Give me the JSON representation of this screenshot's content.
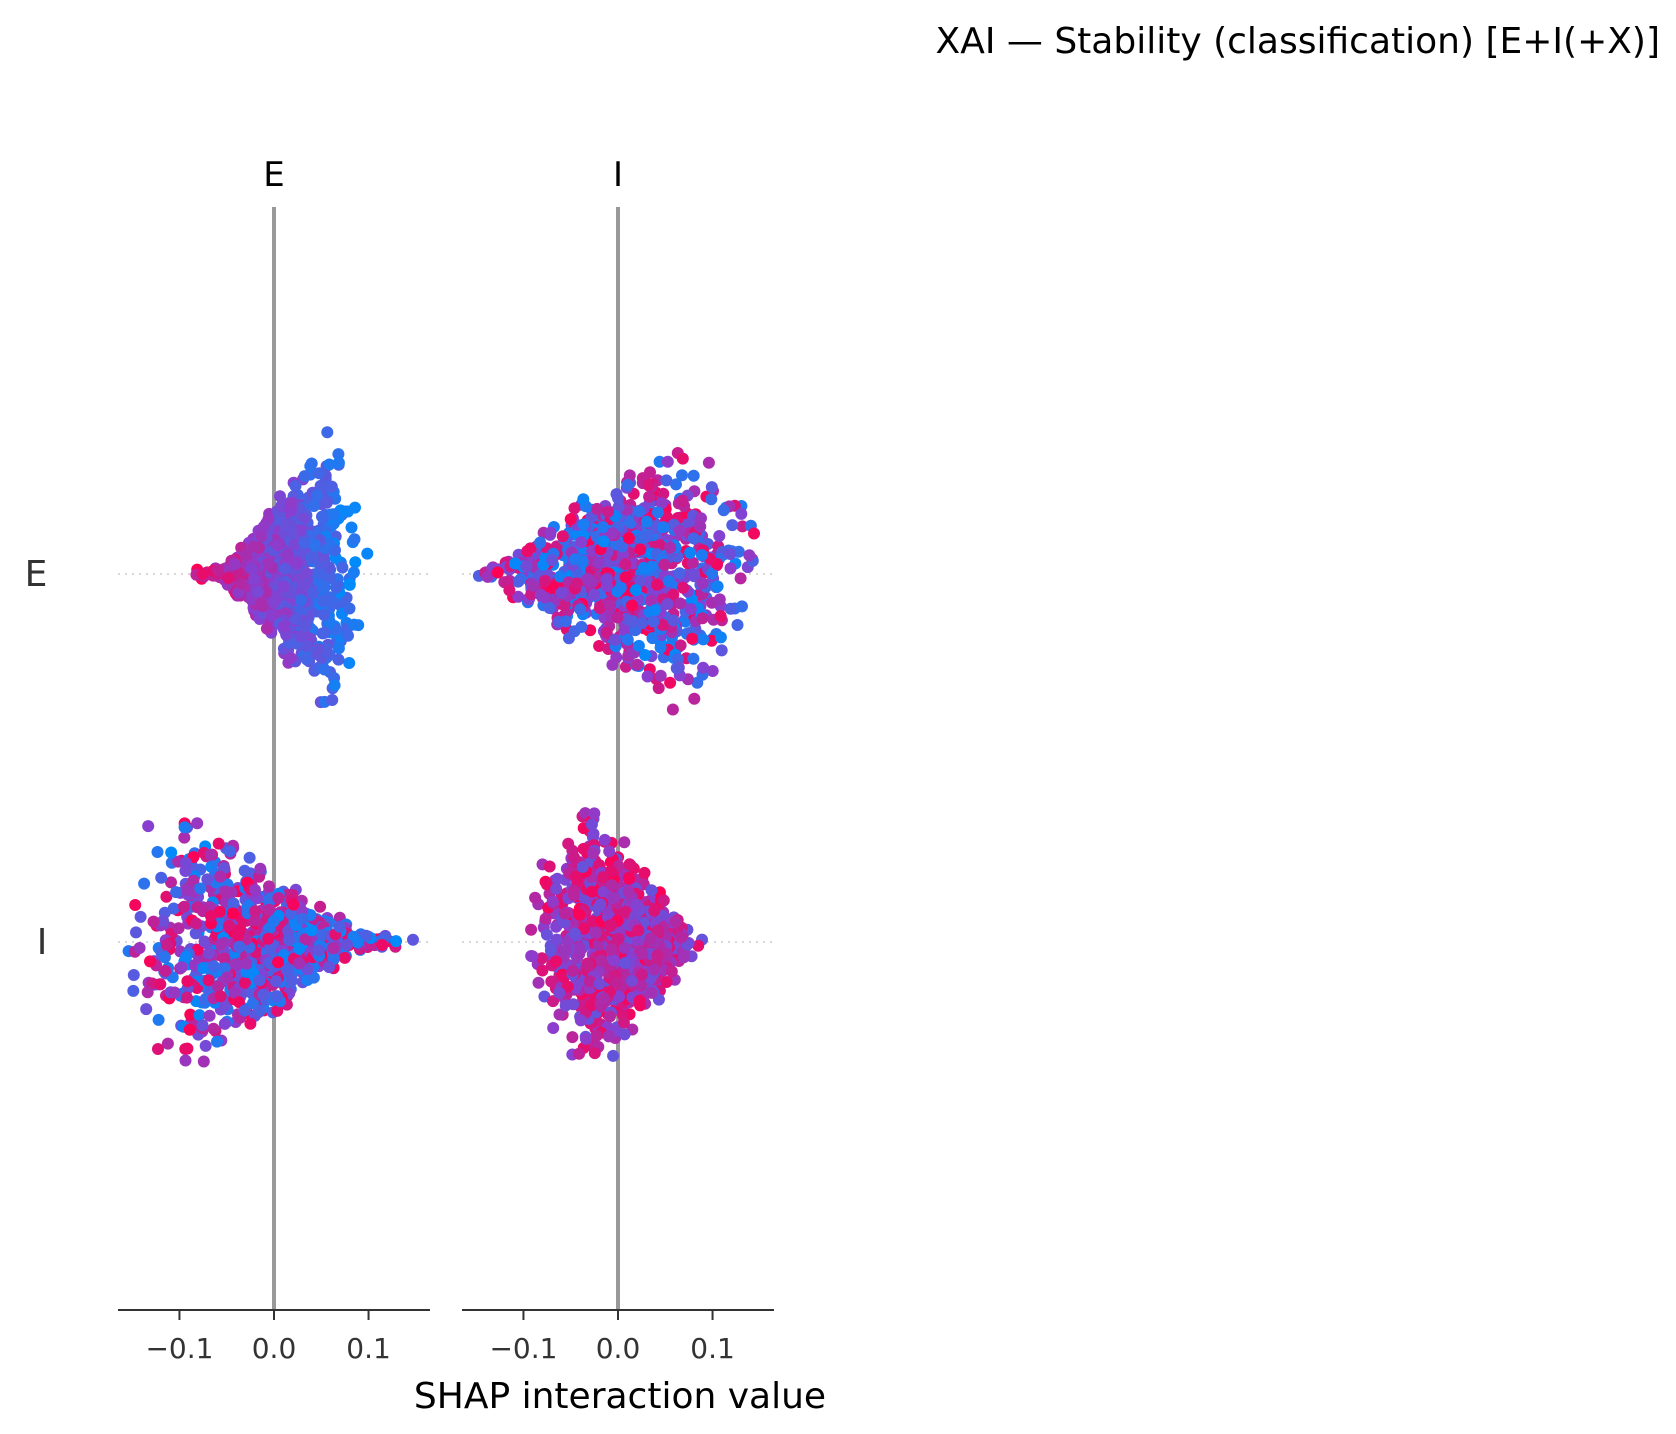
{
  "chart_data": {
    "type": "scatter",
    "subtype": "shap-interaction-beeswarm",
    "title": "XAI — Stability (classification) [E+I(+X)]",
    "xlabel": "SHAP interaction value",
    "features": [
      "E",
      "I"
    ],
    "column_labels": [
      "E",
      "I"
    ],
    "row_labels": [
      "E",
      "I"
    ],
    "xlim": [
      -0.165,
      0.165
    ],
    "xticks": [
      -0.1,
      0.0,
      0.1
    ],
    "xtick_labels": [
      "−0.1",
      "0.0",
      "0.1"
    ],
    "colormap": {
      "low": "#008bfb",
      "mid": "#8a3ed0",
      "high": "#ff0052"
    },
    "grid": false,
    "legend": "none",
    "panels": [
      {
        "row": "E",
        "col": "E",
        "x_min": -0.09,
        "x_max": 0.1,
        "peak_x": 0.06,
        "peak_halfheight": 0.8,
        "high_color_side": "low",
        "seed": 11
      },
      {
        "row": "E",
        "col": "I",
        "x_min": -0.165,
        "x_max": 0.165,
        "peak_x": 0.06,
        "peak_halfheight": 0.8,
        "high_color_side": "mixed",
        "seed": 23
      },
      {
        "row": "I",
        "col": "E",
        "x_min": -0.165,
        "x_max": 0.165,
        "peak_x": -0.1,
        "peak_halfheight": 0.8,
        "high_color_side": "mixed",
        "seed": 37
      },
      {
        "row": "I",
        "col": "I",
        "x_min": -0.1,
        "x_max": 0.1,
        "peak_x": -0.03,
        "peak_halfheight": 0.8,
        "high_color_side": "high",
        "seed": 53
      }
    ]
  }
}
